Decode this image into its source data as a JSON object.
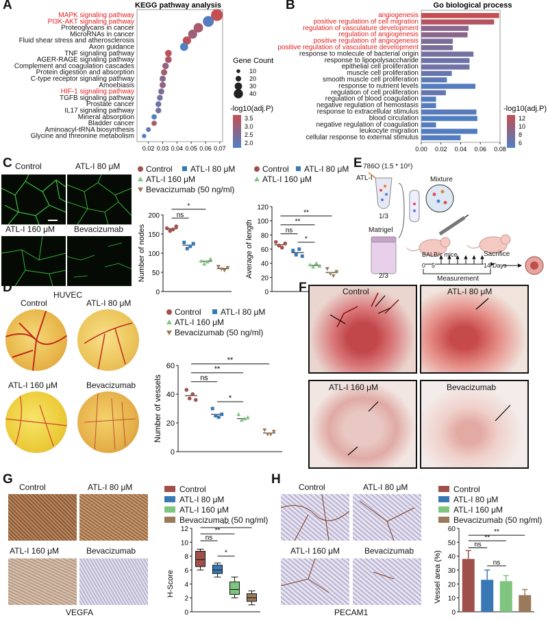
{
  "panels": {
    "A": "A",
    "B": "B",
    "C": "C",
    "D": "D",
    "E": "E",
    "F": "F",
    "G": "G",
    "H": "H"
  },
  "colors": {
    "control": "#a0504a",
    "atl80": "#3a78b5",
    "atl160": "#7fc47f",
    "beva": "#9a7a5a",
    "highlight": "#e02020",
    "bar_high": "#c44e52",
    "bar_low": "#4f7fc4"
  },
  "chart_data": [
    {
      "id": "A",
      "type": "scatter",
      "title": "KEGG pathway analysis",
      "xlabel": "GeneRatio",
      "xlim": [
        0.012,
        0.072
      ],
      "xticks": [
        "0.02",
        "0.03",
        "0.04",
        "0.05",
        "0.06",
        "0.07"
      ],
      "categories": [
        "MAPK signaling pathway",
        "PI3K-AKT signaling pathway",
        "Proteoglycans in cancer",
        "MicroRNAs in cancer",
        "Fluid shear stress and atherosclerosis",
        "Axon guidance",
        "TNF signaling pathway",
        "AGER-RAGE signaling pathway",
        "Complement and coagulation cascades",
        "Protein digestion and absorption",
        "C-type receptor signaling pathway",
        "Amoebiasis",
        "HIF-1 signaling pathway",
        "TGFB signaling pathway",
        "Prostate cancer",
        "IL17 signaling pathway",
        "Mineral absorption",
        "Bladder cancer",
        "Aminoacyl-tRNA biosynthesis",
        "Glycine and threonine metabolism"
      ],
      "highlighted": [
        "MAPK signaling pathway",
        "PI3K-AKT signaling pathway",
        "HIF-1 signaling pathway"
      ],
      "x": [
        0.068,
        0.062,
        0.055,
        0.051,
        0.047,
        0.045,
        0.034,
        0.034,
        0.032,
        0.031,
        0.03,
        0.03,
        0.029,
        0.028,
        0.027,
        0.027,
        0.024,
        0.024,
        0.02,
        0.017
      ],
      "size_gene_count": [
        42,
        38,
        32,
        30,
        27,
        26,
        20,
        20,
        19,
        18,
        18,
        18,
        17,
        16,
        16,
        16,
        14,
        14,
        12,
        10
      ],
      "color_log10_adjP": [
        3.7,
        2.1,
        3.3,
        3.1,
        3.6,
        2.0,
        3.6,
        3.4,
        3.0,
        3.2,
        2.8,
        3.0,
        2.7,
        2.5,
        2.4,
        2.6,
        2.0,
        3.3,
        2.3,
        2.0
      ],
      "legend_size_title": "Gene Count",
      "legend_size_values": [
        "10",
        "20",
        "30",
        "40"
      ],
      "legend_color_title": "-log10(adj.P)",
      "legend_color_values": [
        "3.5",
        "3.0",
        "2.5",
        "2.0"
      ]
    },
    {
      "id": "B",
      "type": "bar",
      "title": "Go biological process",
      "xlabel": "GeneRatio",
      "xlim": [
        0,
        0.08
      ],
      "xticks": [
        "0.00",
        "0.02",
        "0.04",
        "0.06",
        "0.08"
      ],
      "categories": [
        "angiogenesis",
        "positive regulation of cell migration",
        "regulation of vasculature development",
        "regulation of angiogenesis",
        "positive regulation of angiogenesis",
        "positive regulation of vasculature development",
        "response to molecule of bacterial origin",
        "response to lipopolysaccharide",
        "epithelial cell proliferation",
        "muscle cell proliferation",
        "smooth muscle cell proliferation",
        "response to nutrient levels",
        "regulation of cell proliferation",
        "regulation of blood coagulation",
        "negative regulation of hemostasis",
        "response to extracellular stimulus",
        "blood circulation",
        "negative regulation of coagulation",
        "leukocyte migration",
        "cellular response to external stimulus"
      ],
      "highlighted": [
        "angiogenesis",
        "positive regulation of cell migration",
        "regulation of vasculature development",
        "regulation of angiogenesis",
        "positive regulation of angiogenesis",
        "positive regulation of vasculature development"
      ],
      "values": [
        0.079,
        0.074,
        0.048,
        0.047,
        0.032,
        0.032,
        0.053,
        0.049,
        0.049,
        0.031,
        0.026,
        0.055,
        0.025,
        0.015,
        0.015,
        0.056,
        0.057,
        0.015,
        0.057,
        0.04
      ],
      "color_log10_adjP": [
        12.5,
        11.5,
        8.5,
        8.6,
        7.5,
        7.5,
        7.0,
        6.5,
        6.8,
        6.0,
        5.5,
        4.8,
        6.2,
        5.0,
        5.0,
        5.2,
        4.6,
        5.0,
        4.8,
        4.8
      ],
      "legend_color_title": "-log10(adj.P)",
      "legend_color_values": [
        "12",
        "10",
        "8",
        "6"
      ]
    },
    {
      "id": "C1",
      "type": "scatter",
      "ylabel": "Number of nodes",
      "ylim": [
        0,
        200
      ],
      "yticks": [
        "0",
        "50",
        "100",
        "150",
        "200"
      ],
      "groups": [
        "Control",
        "ATL-I 80 μM",
        "ATL-I 160 μM",
        "Bevacizumab (50 ng/ml)"
      ],
      "points": [
        [
          165,
          158,
          162,
          170
        ],
        [
          128,
          112,
          118,
          125
        ],
        [
          80,
          72,
          78,
          85
        ],
        [
          65,
          58,
          55,
          62
        ]
      ],
      "means": [
        164,
        121,
        79,
        60
      ],
      "significance": [
        {
          "from": 0,
          "to": 1,
          "label": "ns"
        },
        {
          "from": 0,
          "to": 2,
          "label": "*"
        },
        {
          "from": 0,
          "to": 3,
          "label": "**"
        }
      ]
    },
    {
      "id": "C2",
      "type": "scatter",
      "ylabel": "Average of length",
      "ylim": [
        0,
        120
      ],
      "yticks": [
        "0",
        "20",
        "40",
        "60",
        "80",
        "100",
        "120"
      ],
      "groups": [
        "Control",
        "ATL-I 80 μM",
        "ATL-I 160 μM",
        "Bevacizumab (50 ng/ml)"
      ],
      "points": [
        [
          70,
          65,
          62,
          68
        ],
        [
          58,
          52,
          60,
          50
        ],
        [
          38,
          35,
          40,
          36
        ],
        [
          32,
          25,
          22,
          28
        ]
      ],
      "means": [
        66,
        55,
        37,
        27
      ],
      "significance": [
        {
          "from": 0,
          "to": 1,
          "label": "ns"
        },
        {
          "from": 0,
          "to": 2,
          "label": "**"
        },
        {
          "from": 1,
          "to": 2,
          "label": "*"
        },
        {
          "from": 0,
          "to": 3,
          "label": "**"
        }
      ]
    },
    {
      "id": "D",
      "type": "scatter",
      "ylabel": "Number of vessels",
      "ylim": [
        0,
        60
      ],
      "yticks": [
        "0",
        "20",
        "40",
        "60"
      ],
      "groups": [
        "Control",
        "ATL-I 80 μM",
        "ATL-I 160 μM",
        "Bevacizumab (50 ng/ml)"
      ],
      "points": [
        [
          43,
          37,
          40,
          36
        ],
        [
          30,
          25,
          24,
          26
        ],
        [
          26,
          22,
          23,
          24
        ],
        [
          15,
          12,
          12,
          14
        ]
      ],
      "means": [
        39,
        26,
        23,
        13
      ],
      "significance": [
        {
          "from": 0,
          "to": 1,
          "label": "ns"
        },
        {
          "from": 0,
          "to": 2,
          "label": "**"
        },
        {
          "from": 1,
          "to": 2,
          "label": "*"
        },
        {
          "from": 0,
          "to": 3,
          "label": "**"
        }
      ]
    },
    {
      "id": "G",
      "type": "box",
      "ylabel": "H-Score",
      "ylim": [
        0,
        12
      ],
      "yticks": [
        "0",
        "2",
        "4",
        "6",
        "8",
        "10",
        "12"
      ],
      "groups": [
        "Control",
        "ATL-I 80 μM",
        "ATL-I 160 μM",
        "Bevacizumab (50 ng/ml)"
      ],
      "boxes": [
        {
          "min": 6.0,
          "q1": 6.5,
          "median": 7.5,
          "q3": 8.7,
          "max": 9.0
        },
        {
          "min": 5.0,
          "q1": 5.5,
          "median": 6.0,
          "q3": 6.7,
          "max": 7.0
        },
        {
          "min": 2.0,
          "q1": 2.5,
          "median": 3.2,
          "q3": 4.3,
          "max": 5.0
        },
        {
          "min": 1.0,
          "q1": 1.5,
          "median": 2.0,
          "q3": 2.6,
          "max": 3.0
        }
      ],
      "significance": [
        {
          "from": 0,
          "to": 1,
          "label": "ns"
        },
        {
          "from": 0,
          "to": 2,
          "label": "**"
        },
        {
          "from": 1,
          "to": 2,
          "label": "*"
        },
        {
          "from": 0,
          "to": 3,
          "label": "***"
        }
      ]
    },
    {
      "id": "H",
      "type": "bar",
      "ylabel": "Vessel area (%)",
      "ylim": [
        0,
        60
      ],
      "yticks": [
        "0",
        "10",
        "20",
        "30",
        "40",
        "50",
        "60"
      ],
      "groups": [
        "Control",
        "ATL-I 80 μM",
        "ATL-I 160 μM",
        "Bevacizumab (50 ng/ml)"
      ],
      "values": [
        38,
        23,
        22,
        12
      ],
      "errors": [
        6,
        7,
        4,
        4
      ],
      "significance": [
        {
          "from": 0,
          "to": 1,
          "label": "ns"
        },
        {
          "from": 0,
          "to": 2,
          "label": "**"
        },
        {
          "from": 1,
          "to": 2,
          "label": "ns"
        },
        {
          "from": 0,
          "to": 3,
          "label": "**"
        }
      ]
    }
  ],
  "legend": {
    "control": "Control",
    "atl80": "ATL-I 80 μM",
    "atl160": "ATL-I 160 μM",
    "beva": "Bevacizumab (50 ng/ml)"
  },
  "C": {
    "img_labels": [
      "Control",
      "ATL-I 80 μM",
      "ATL-I 160 μM",
      "Bevacizumab"
    ],
    "caption": "HUVEC"
  },
  "D": {
    "img_labels": [
      "Control",
      "ATL-I 80 μM",
      "ATL-I 160 μM",
      "Bevacizumab"
    ]
  },
  "E": {
    "cells": "786O (1.5 * 10⁶)",
    "drug": "ATL-I",
    "frac1": "1/3",
    "matrigel": "Matrigel",
    "frac2": "2/3",
    "mixture": "Mixture",
    "mice": "BALB/c mice",
    "sacrifice": "Sacrifice",
    "timeline": [
      "0",
      "5",
      "14"
    ],
    "days": "Days",
    "measurement": "Measurement"
  },
  "F": {
    "img_labels": [
      "Control",
      "ATL-I 80 μM",
      "ATL-I 160 μM",
      "Bevacizumab"
    ]
  },
  "G": {
    "img_labels": [
      "Control",
      "ATL-I 80 μM",
      "ATL-I 160 μM",
      "Bevacizumab"
    ],
    "caption": "VEGFA"
  },
  "H": {
    "img_labels": [
      "Control",
      "ATL-I 80 μM",
      "ATL-I 160 μM",
      "Bevacizumab"
    ],
    "caption": "PECAM1"
  }
}
